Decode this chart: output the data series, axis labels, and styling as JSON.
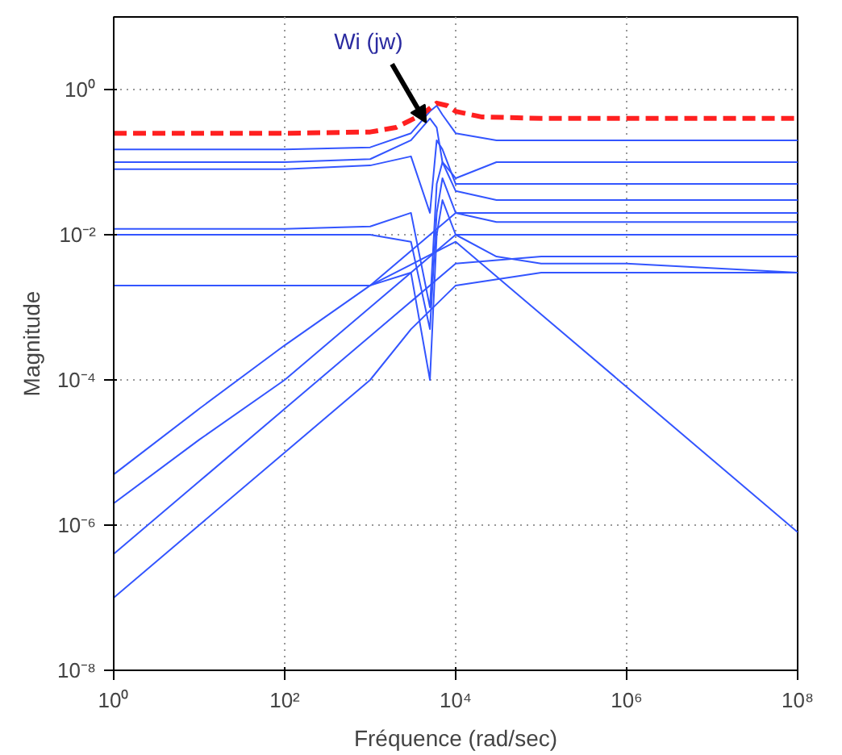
{
  "chart_data": {
    "type": "line",
    "xlabel": "Fréquence (rad/sec)",
    "ylabel": "Magnitude",
    "log": "xy",
    "grid": true,
    "marker": "none",
    "xlim": [
      1,
      100000000
    ],
    "ylim": [
      1e-08,
      10
    ],
    "xticks": [
      {
        "value": 1,
        "label": "10⁰"
      },
      {
        "value": 100,
        "label": "10²"
      },
      {
        "value": 10000,
        "label": "10⁴"
      },
      {
        "value": 1000000,
        "label": "10⁶"
      },
      {
        "value": 100000000,
        "label": "10⁸"
      }
    ],
    "yticks": [
      {
        "value": 1e-08,
        "label": "10⁻⁸"
      },
      {
        "value": 1e-06,
        "label": "10⁻⁶"
      },
      {
        "value": 0.0001,
        "label": "10⁻⁴"
      },
      {
        "value": 0.01,
        "label": "10⁻²"
      },
      {
        "value": 1,
        "label": "10⁰"
      }
    ],
    "annotations": [
      {
        "text": "Wi (jw)",
        "x": 4500,
        "y": 0.35
      }
    ],
    "series": [
      {
        "color": "#3355ff",
        "x": [
          1,
          100,
          1000,
          3000,
          5000,
          6000,
          7000,
          10000,
          30000,
          100000,
          100000000
        ],
        "values": [
          0.15,
          0.15,
          0.16,
          0.25,
          0.5,
          0.6,
          0.45,
          0.25,
          0.2,
          0.2,
          0.2
        ]
      },
      {
        "color": "#3355ff",
        "x": [
          1,
          100,
          1000,
          3000,
          5000,
          6000,
          7000,
          10000,
          30000,
          100000,
          100000000
        ],
        "values": [
          0.1,
          0.1,
          0.11,
          0.2,
          0.4,
          0.3,
          0.1,
          0.06,
          0.1,
          0.1,
          0.1
        ]
      },
      {
        "color": "#3355ff",
        "x": [
          1,
          100,
          1000,
          3000,
          5000,
          6000,
          7000,
          10000,
          30000,
          100000,
          100000000
        ],
        "values": [
          0.08,
          0.08,
          0.09,
          0.12,
          0.02,
          0.2,
          0.15,
          0.05,
          0.05,
          0.05,
          0.05
        ]
      },
      {
        "color": "#3355ff",
        "x": [
          1,
          100,
          1000,
          3000,
          5000,
          6000,
          7000,
          10000,
          30000,
          100000,
          100000000
        ],
        "values": [
          0.012,
          0.012,
          0.013,
          0.02,
          0.001,
          0.05,
          0.1,
          0.04,
          0.03,
          0.03,
          0.03
        ]
      },
      {
        "color": "#3355ff",
        "x": [
          1,
          100,
          1000,
          3000,
          5000,
          6000,
          7000,
          10000,
          30000,
          100000,
          100000000
        ],
        "values": [
          0.01,
          0.01,
          0.01,
          0.008,
          0.0005,
          0.02,
          0.06,
          0.02,
          0.015,
          0.015,
          0.015
        ]
      },
      {
        "color": "#3355ff",
        "x": [
          1,
          100,
          1000,
          3000,
          5000,
          6000,
          7000,
          10000,
          30000,
          100000,
          1000000,
          100000000
        ],
        "values": [
          0.002,
          0.002,
          0.002,
          0.003,
          0.0001,
          0.01,
          0.03,
          0.01,
          0.005,
          0.004,
          0.004,
          0.003
        ]
      },
      {
        "color": "#3355ff",
        "x": [
          1,
          10,
          100,
          1000,
          3000,
          10000,
          100000,
          100000000
        ],
        "values": [
          1e-07,
          1e-06,
          1e-05,
          0.0001,
          0.0005,
          0.002,
          0.003,
          0.003
        ]
      },
      {
        "color": "#3355ff",
        "x": [
          1,
          10,
          100,
          1000,
          3000,
          10000,
          100000,
          100000000
        ],
        "values": [
          4e-07,
          4e-06,
          4e-05,
          0.0004,
          0.0012,
          0.004,
          0.005,
          0.005
        ]
      },
      {
        "color": "#3355ff",
        "x": [
          1,
          10,
          100,
          1000,
          3000,
          10000,
          100000,
          100000000
        ],
        "values": [
          2e-06,
          1.5e-05,
          0.0001,
          0.001,
          0.003,
          0.01,
          0.01,
          0.01
        ]
      },
      {
        "color": "#3355ff",
        "x": [
          1,
          10,
          100,
          1000,
          3000,
          10000,
          100000,
          100000000
        ],
        "values": [
          5e-06,
          4e-05,
          0.0003,
          0.002,
          0.006,
          0.02,
          0.02,
          0.02
        ]
      },
      {
        "color": "#3355ff",
        "x": [
          1000,
          10000,
          100000,
          1000000,
          10000000,
          100000000
        ],
        "values": [
          0.002,
          0.008,
          0.0008,
          8e-05,
          8e-06,
          8e-07
        ]
      },
      {
        "color": "#ff2020",
        "line_style": "dashed",
        "x": [
          1,
          100,
          1000,
          2000,
          4000,
          6000,
          8000,
          10000,
          20000,
          100000,
          100000000
        ],
        "values": [
          0.25,
          0.25,
          0.26,
          0.3,
          0.45,
          0.65,
          0.6,
          0.5,
          0.42,
          0.4,
          0.4
        ]
      }
    ]
  }
}
